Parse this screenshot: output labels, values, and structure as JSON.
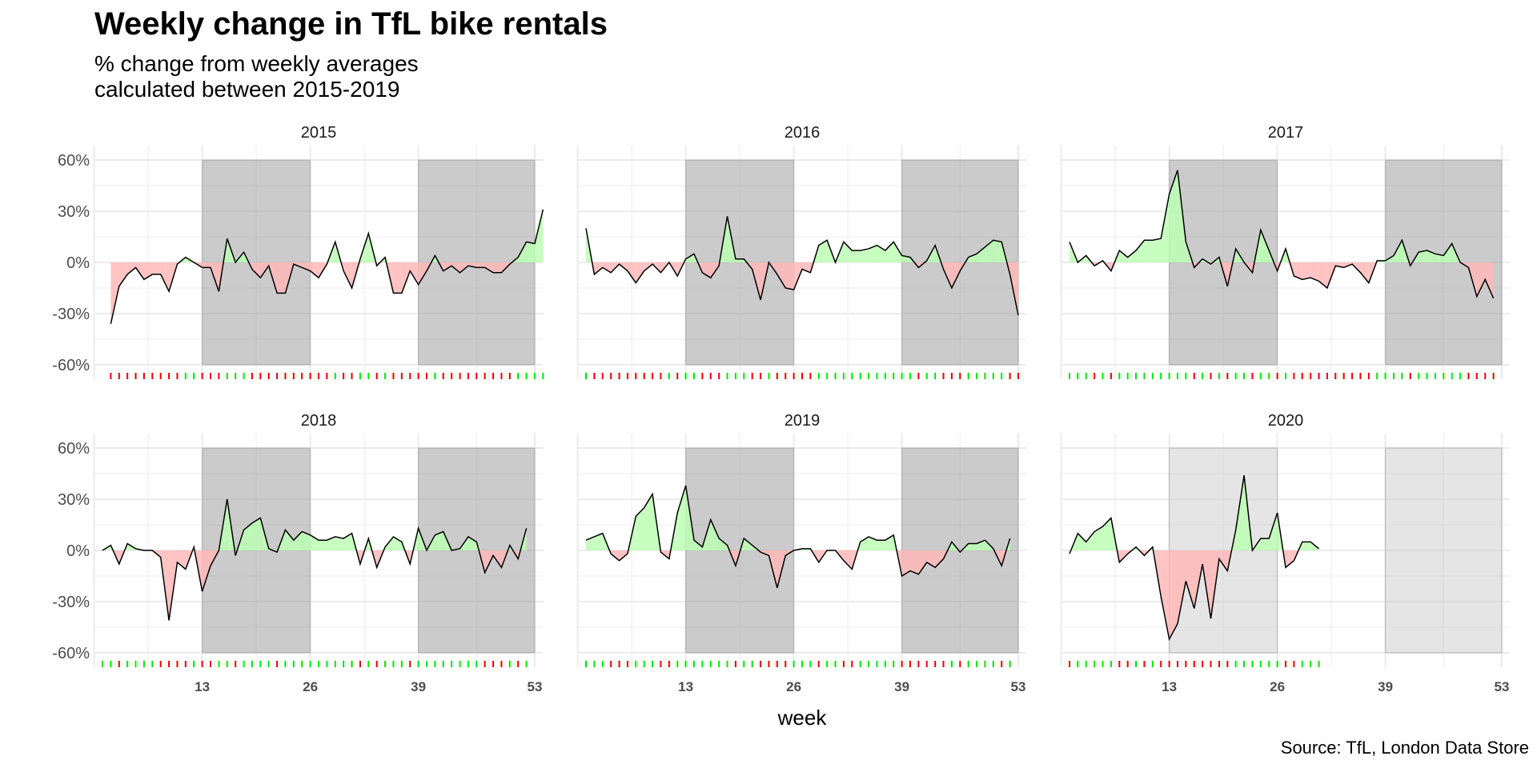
{
  "title": "Weekly change in TfL bike rentals",
  "subtitle_line1": "% change from weekly averages",
  "subtitle_line2": "calculated between 2015-2019",
  "caption": "Source: TfL, London Data Store",
  "colors": {
    "positive_fill": "#bcffb4",
    "negative_fill": "#ffb8b8",
    "shade_rect": "#a0a0a0",
    "shade_rect_2020": "#cfcfcf",
    "line": "#000000",
    "rug_positive": "#00e600",
    "rug_negative": "#e60000",
    "grid": "#ebebeb"
  },
  "chart_data": {
    "type": "area",
    "xlabel": "week",
    "ylabel": "",
    "ylim": [
      -60,
      60
    ],
    "y_ticks": [
      -60,
      -30,
      0,
      30,
      60
    ],
    "y_tick_labels": [
      "-60%",
      "-30%",
      "0%",
      "30%",
      "60%"
    ],
    "x_ticks": [
      13,
      26,
      39,
      53
    ],
    "x_tick_labels": [
      "13",
      "26",
      "39",
      "53"
    ],
    "x_range": [
      1,
      53
    ],
    "shaded_weeks": [
      [
        13,
        26
      ],
      [
        39,
        53
      ]
    ],
    "facets": [
      {
        "name": "2015",
        "start_week": 2,
        "values": [
          -36,
          -14,
          -7,
          -3,
          -10,
          -7,
          -7,
          -17,
          -1,
          3,
          0,
          -3,
          -3,
          -17,
          14,
          0,
          6,
          -4,
          -9,
          -2,
          -18,
          -18,
          -1,
          -3,
          -5,
          -9,
          -1,
          12,
          -5,
          -15,
          2,
          17,
          -2,
          3,
          -18,
          -18,
          -5,
          -13,
          -5,
          4,
          -5,
          -2,
          -6,
          -2,
          -3,
          -3,
          -6,
          -6,
          -1,
          3,
          12,
          11,
          31
        ]
      },
      {
        "name": "2016",
        "start_week": 1,
        "values": [
          20,
          -7,
          -3,
          -6,
          -1,
          -5,
          -12,
          -5,
          -1,
          -6,
          0,
          -8,
          2,
          5,
          -6,
          -9,
          -2,
          27,
          2,
          2,
          -4,
          -22,
          0,
          -7,
          -15,
          -16,
          -4,
          -6,
          10,
          13,
          0,
          12,
          7,
          7,
          8,
          10,
          7,
          12,
          4,
          3,
          -3,
          1,
          10,
          -4,
          -15,
          -5,
          3,
          5,
          9,
          13,
          12,
          -7,
          -31
        ]
      },
      {
        "name": "2017",
        "start_week": 1,
        "values": [
          12,
          0,
          4,
          -2,
          1,
          -5,
          7,
          3,
          7,
          13,
          13,
          14,
          40,
          54,
          12,
          -3,
          2,
          -1,
          3,
          -14,
          8,
          0,
          -6,
          19,
          7,
          -5,
          8,
          -8,
          -10,
          -9,
          -11,
          -15,
          -2,
          -3,
          -1,
          -6,
          -12,
          1,
          1,
          4,
          13,
          -2,
          6,
          7,
          5,
          4,
          11,
          0,
          -3,
          -20,
          -10,
          -21
        ]
      },
      {
        "name": "2018",
        "start_week": 1,
        "values": [
          0,
          3,
          -8,
          4,
          1,
          0,
          0,
          -4,
          -41,
          -7,
          -11,
          2,
          -24,
          -9,
          0,
          30,
          -3,
          12,
          16,
          19,
          1,
          -1,
          12,
          6,
          11,
          9,
          6,
          6,
          8,
          7,
          10,
          -8,
          7,
          -10,
          2,
          8,
          5,
          -8,
          13,
          0,
          9,
          11,
          0,
          1,
          8,
          5,
          -13,
          -3,
          -10,
          3,
          -5,
          13
        ]
      },
      {
        "name": "2019",
        "start_week": 1,
        "values": [
          6,
          8,
          10,
          -2,
          -6,
          -2,
          20,
          25,
          33,
          -1,
          -5,
          22,
          38,
          6,
          2,
          18,
          7,
          3,
          -9,
          7,
          3,
          -1,
          -3,
          -22,
          -3,
          0,
          1,
          1,
          -7,
          0,
          0,
          -6,
          -11,
          5,
          8,
          6,
          6,
          9,
          -15,
          -12,
          -14,
          -7,
          -10,
          -5,
          5,
          -1,
          4,
          4,
          6,
          1,
          -9,
          7
        ]
      },
      {
        "name": "2020",
        "start_week": 1,
        "values": [
          -2,
          10,
          5,
          11,
          14,
          19,
          -7,
          -2,
          2,
          -3,
          2,
          -27,
          -52,
          -43,
          -18,
          -34,
          -8,
          -40,
          -5,
          -12,
          12,
          44,
          0,
          7,
          7,
          22,
          -10,
          -6,
          5,
          5,
          1
        ]
      }
    ]
  }
}
